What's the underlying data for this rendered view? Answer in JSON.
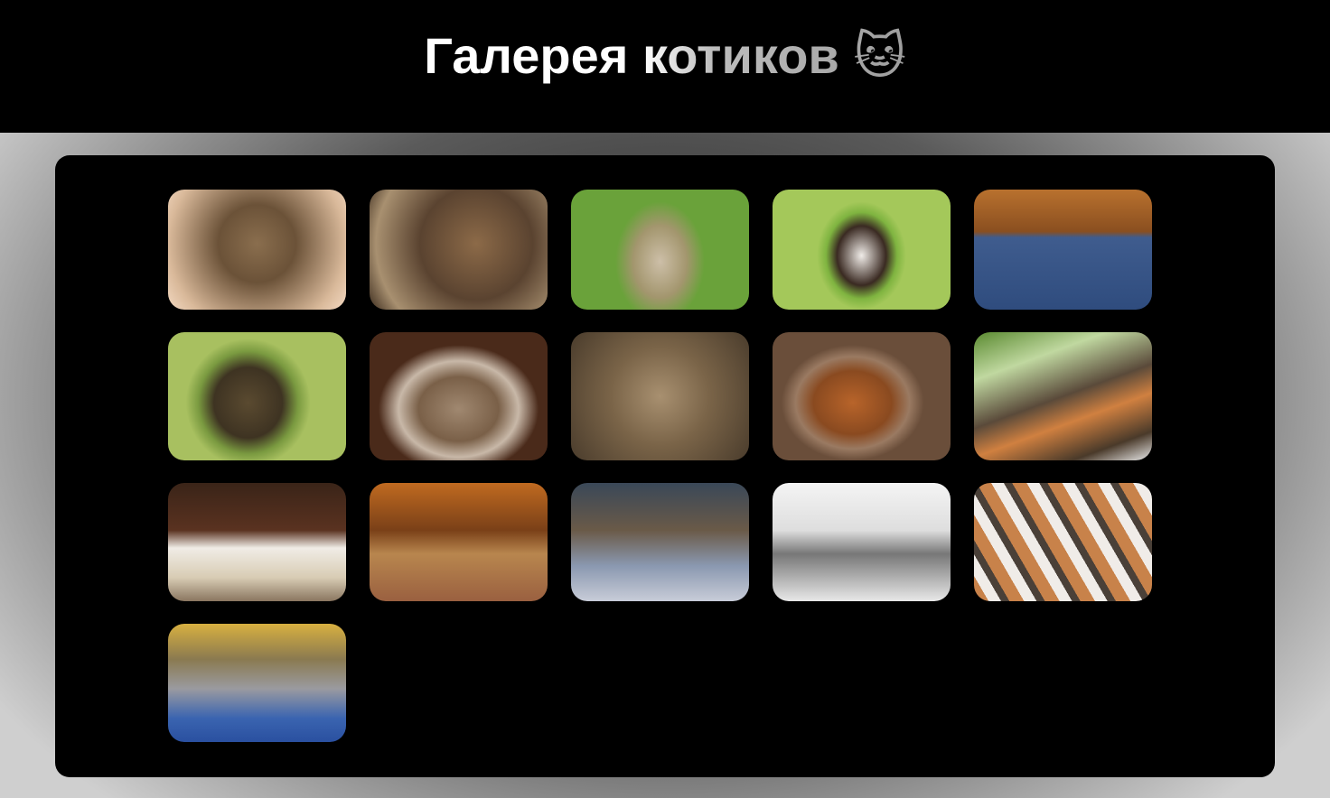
{
  "header": {
    "title": "Галерея котиков 🐱"
  }
}
